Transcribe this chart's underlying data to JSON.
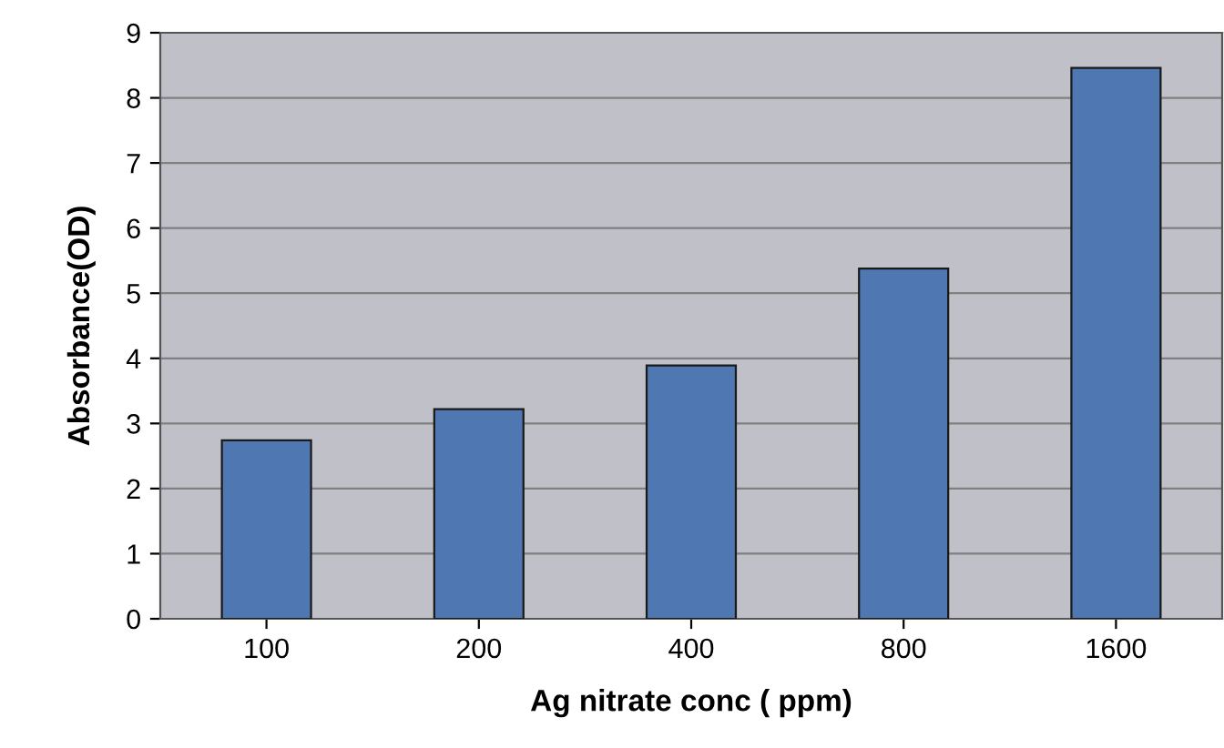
{
  "chart_data": {
    "type": "bar",
    "xlabel": "Ag nitrate conc ( ppm)",
    "ylabel": "Absorbance(OD)",
    "categories": [
      "100",
      "200",
      "400",
      "800",
      "1600"
    ],
    "values": [
      2.74,
      3.22,
      3.89,
      5.38,
      8.46
    ],
    "color": "#4f78b3",
    "ylim": [
      0,
      9
    ],
    "yticks": [
      0,
      1,
      2,
      3,
      4,
      5,
      6,
      7,
      8,
      9
    ],
    "grid": "y"
  }
}
